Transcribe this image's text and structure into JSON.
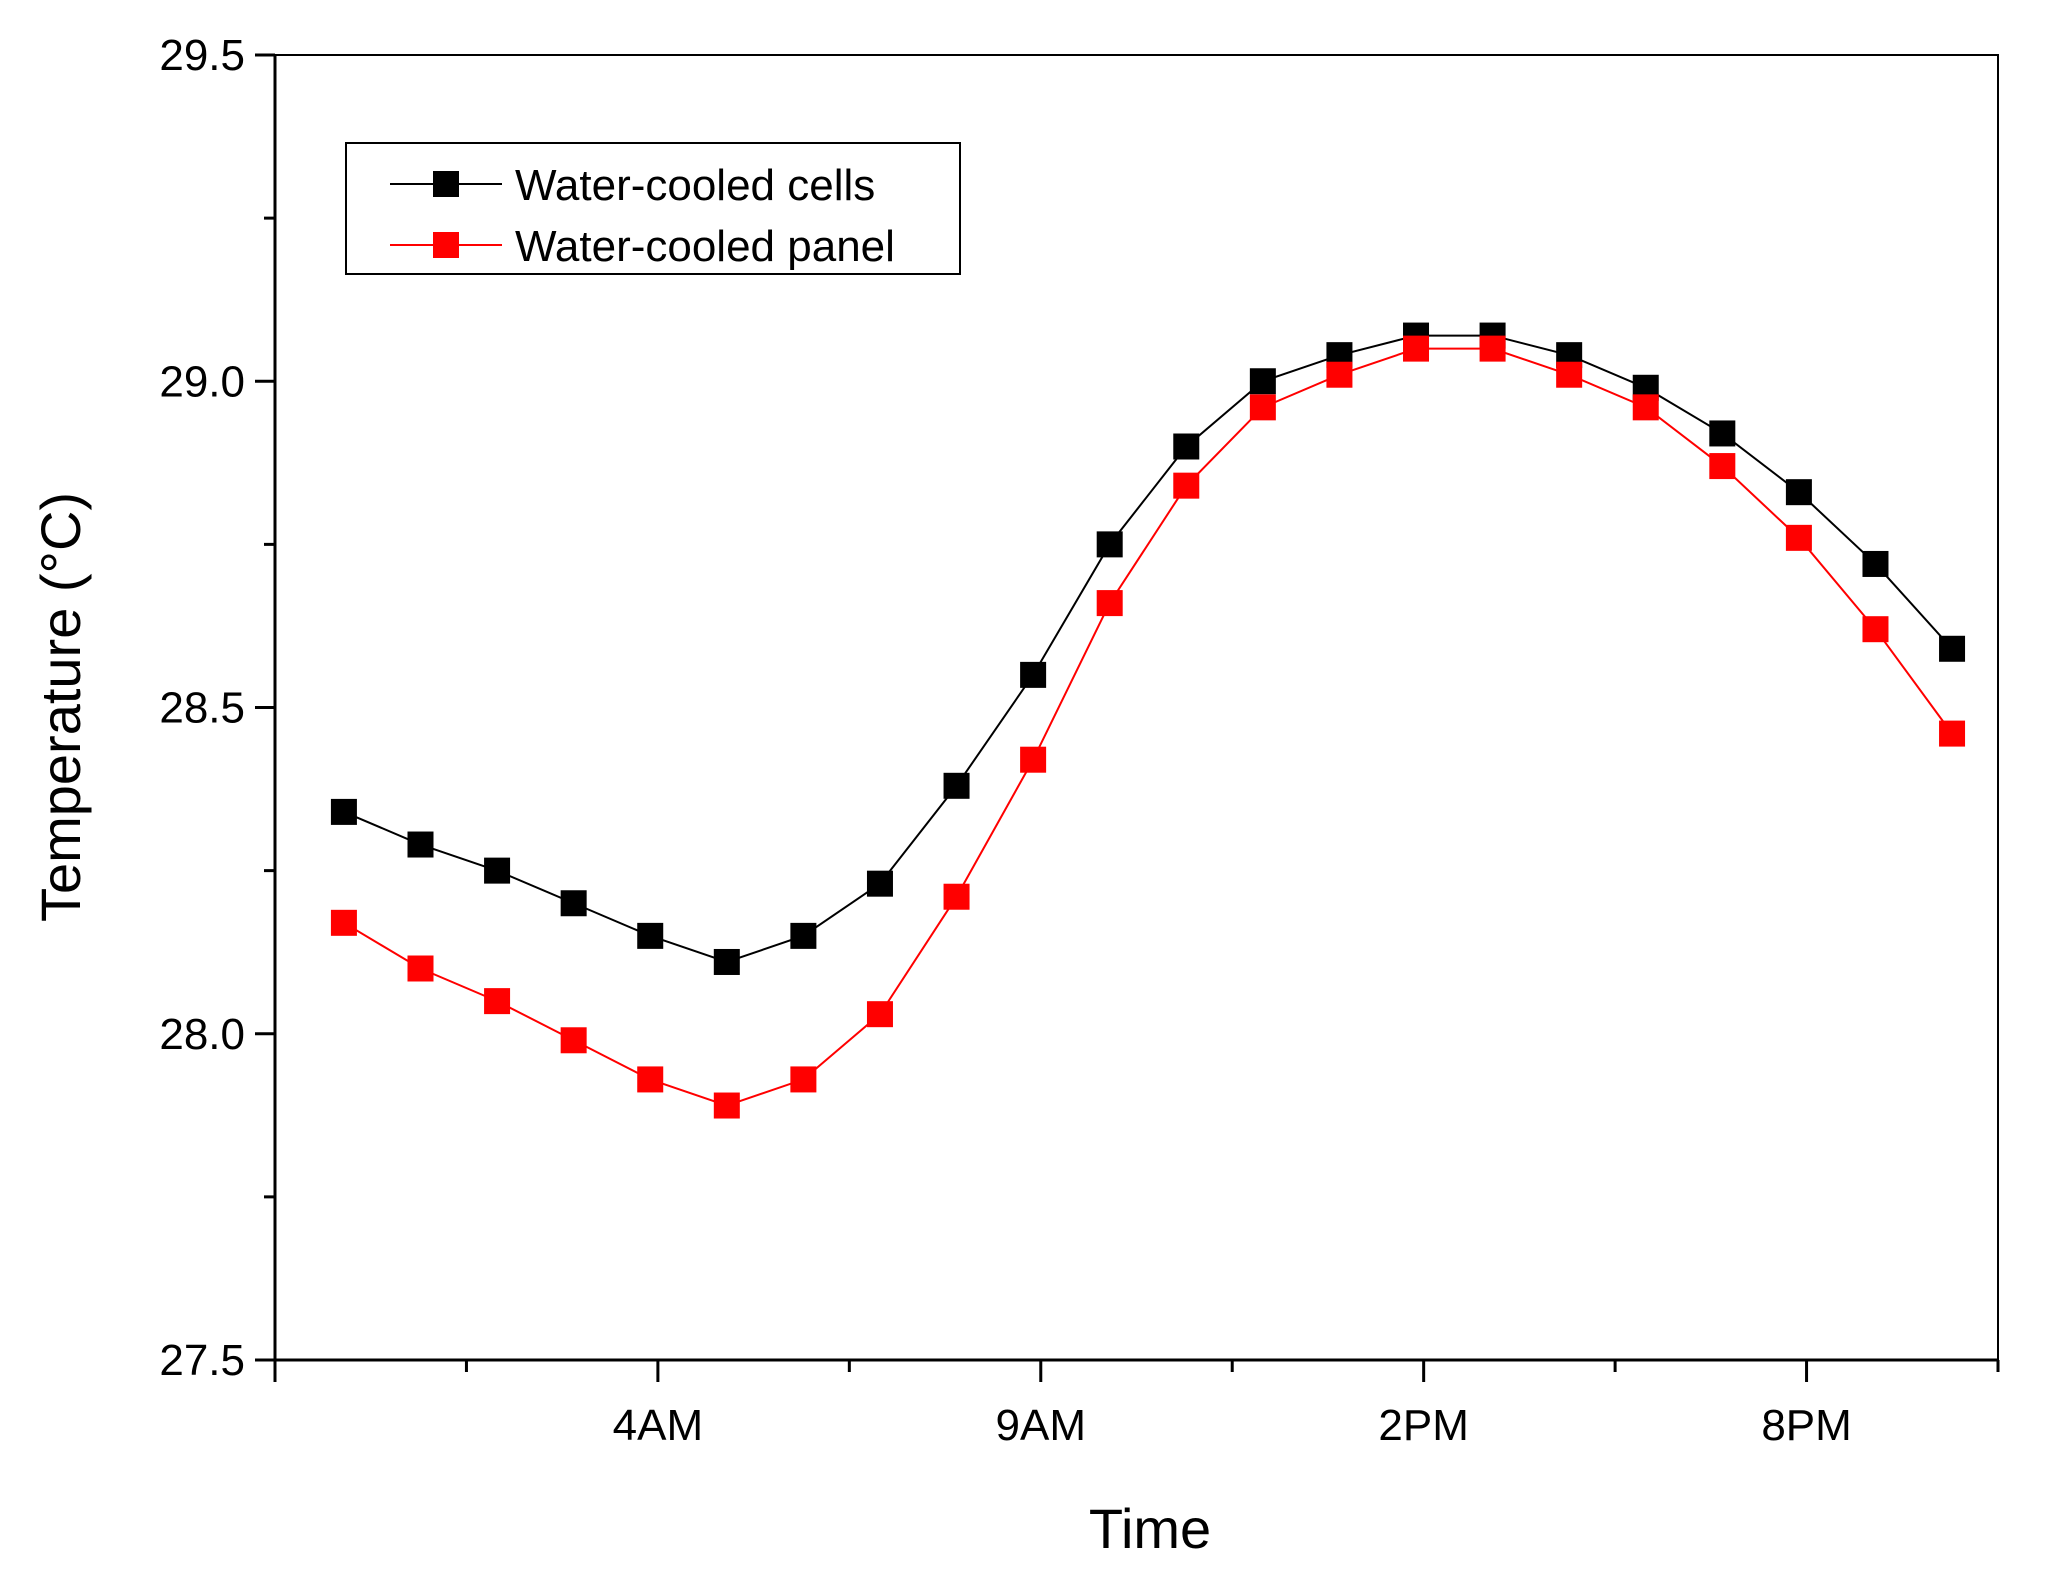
{
  "chart_data": {
    "type": "line",
    "title": "",
    "xlabel": "Time",
    "ylabel": "Temperature (°C)",
    "x": [
      1,
      2,
      3,
      4,
      5,
      6,
      7,
      8,
      9,
      10,
      11,
      12,
      13,
      14,
      15,
      16,
      17,
      18,
      19,
      20,
      21,
      22
    ],
    "xlim": [
      0.1,
      22.6
    ],
    "ylim": [
      27.5,
      29.5
    ],
    "x_major_ticks": [
      0.1,
      5.1,
      10.1,
      15.1,
      20.1,
      25.1
    ],
    "x_tick_labels": [
      {
        "x": 5.1,
        "label": "4AM"
      },
      {
        "x": 10.1,
        "label": "9AM"
      },
      {
        "x": 15.1,
        "label": "2PM"
      },
      {
        "x": 20.1,
        "label": "8PM"
      }
    ],
    "x_minor_ticks": [
      2.6,
      7.6,
      12.6,
      17.6,
      22.6
    ],
    "y_major_ticks": [
      27.5,
      28.0,
      28.5,
      29.0,
      29.5
    ],
    "y_tick_labels": [
      "27.5",
      "28.0",
      "28.5",
      "29.0",
      "29.5"
    ],
    "y_minor_ticks": [
      27.75,
      28.25,
      28.75,
      29.25
    ],
    "grid": false,
    "legend": "top-left",
    "series": [
      {
        "name": "Water-cooled cells",
        "color": "#000000",
        "marker": "square",
        "values": [
          28.34,
          28.29,
          28.25,
          28.2,
          28.15,
          28.11,
          28.15,
          28.23,
          28.38,
          28.55,
          28.75,
          28.9,
          29.0,
          29.04,
          29.07,
          29.07,
          29.04,
          28.99,
          28.92,
          28.83,
          28.72,
          28.59
        ]
      },
      {
        "name": "Water-cooled panel",
        "color": "#ff0000",
        "marker": "square",
        "values": [
          28.17,
          28.1,
          28.05,
          27.99,
          27.93,
          27.89,
          27.93,
          28.03,
          28.21,
          28.42,
          28.66,
          28.84,
          28.96,
          29.01,
          29.05,
          29.05,
          29.01,
          28.96,
          28.87,
          28.76,
          28.62,
          28.46
        ]
      }
    ]
  }
}
